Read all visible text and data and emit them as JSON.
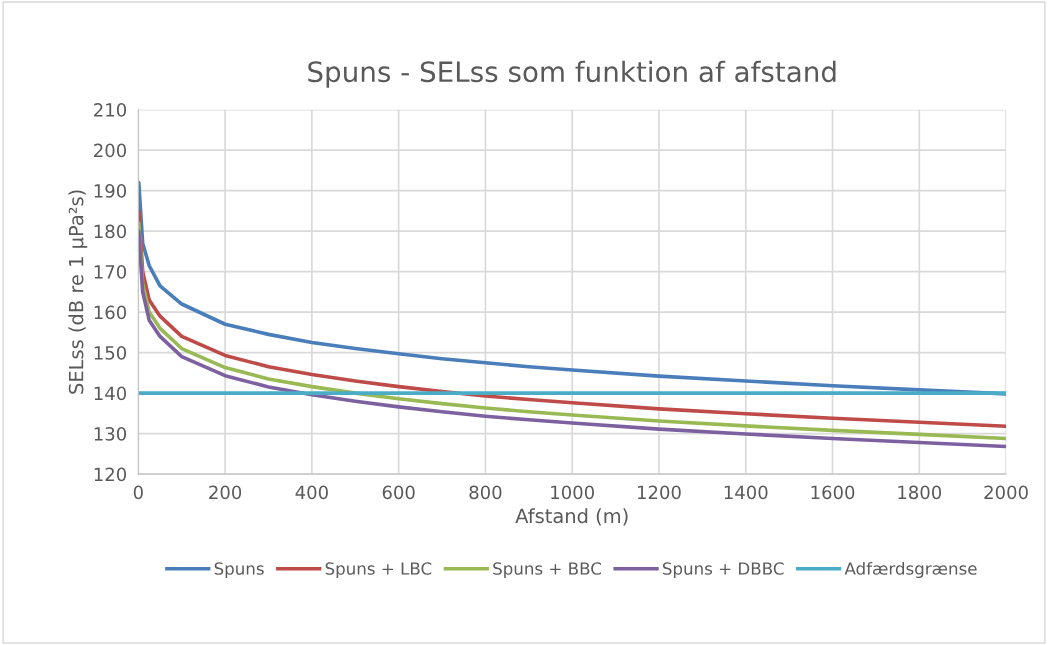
{
  "chart_data": {
    "type": "line",
    "title": "Spuns - SELss som funktion af afstand",
    "xlabel": "Afstand (m)",
    "ylabel": "SELss (dB re 1 µPa²s)",
    "x": [
      1,
      10,
      25,
      50,
      100,
      200,
      300,
      400,
      500,
      600,
      700,
      800,
      900,
      1000,
      1200,
      1400,
      1600,
      1800,
      2000
    ],
    "series": [
      {
        "name": "Spuns",
        "color": "#4a7ebb",
        "values": [
          192,
          177,
          171.5,
          166.5,
          162,
          157,
          154.5,
          152.5,
          151,
          149.7,
          148.5,
          147.5,
          146.5,
          145.7,
          144.2,
          143,
          141.8,
          140.8,
          139.8
        ]
      },
      {
        "name": "Spuns + LBC",
        "color": "#be4b48",
        "values": [
          185,
          170,
          163,
          159,
          154,
          149.3,
          146.5,
          144.6,
          143,
          141.6,
          140.4,
          139.3,
          138.4,
          137.6,
          136.1,
          134.9,
          133.8,
          132.8,
          131.8
        ]
      },
      {
        "name": "Spuns + BBC",
        "color": "#98b954",
        "values": [
          182,
          167,
          160,
          156,
          151,
          146.3,
          143.5,
          141.6,
          140,
          138.6,
          137.4,
          136.3,
          135.4,
          134.6,
          133.1,
          131.9,
          130.8,
          129.8,
          128.8
        ]
      },
      {
        "name": "Spuns + DBBC",
        "color": "#7d60a0",
        "values": [
          180,
          165,
          158,
          154,
          149,
          144.3,
          141.5,
          139.6,
          138,
          136.6,
          135.4,
          134.3,
          133.4,
          132.6,
          131.1,
          129.9,
          128.8,
          127.8,
          126.8
        ]
      },
      {
        "name": "Adfærdsgrænse",
        "color": "#4bacc6",
        "x": [
          0,
          2000
        ],
        "values": [
          140,
          140
        ]
      }
    ],
    "xlim": [
      0,
      2000
    ],
    "xticks": [
      0,
      200,
      400,
      600,
      800,
      1000,
      1200,
      1400,
      1600,
      1800,
      2000
    ],
    "ylim": [
      120,
      210
    ],
    "yticks": [
      120,
      130,
      140,
      150,
      160,
      170,
      180,
      190,
      200,
      210
    ],
    "grid": true,
    "legend": "bottom",
    "marker": "none",
    "line_style": "solid"
  }
}
